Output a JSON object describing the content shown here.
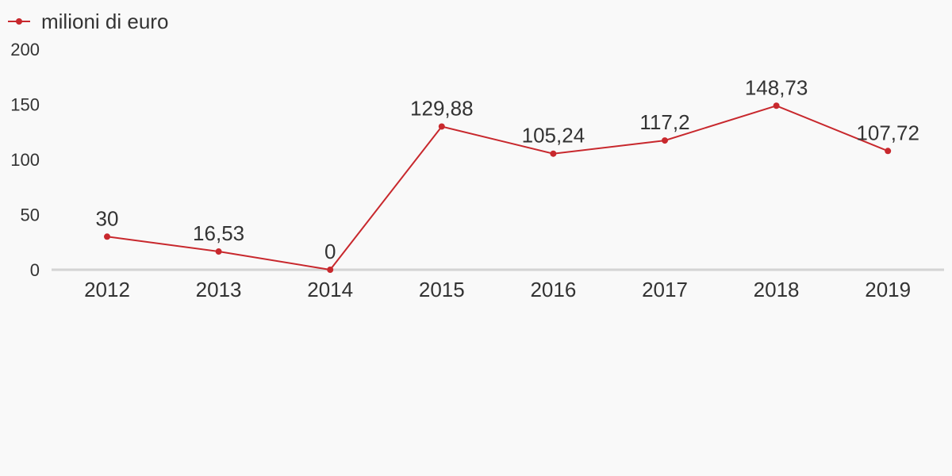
{
  "chart_data": {
    "type": "line",
    "categories": [
      "2012",
      "2013",
      "2014",
      "2015",
      "2016",
      "2017",
      "2018",
      "2019"
    ],
    "series": [
      {
        "name": "milioni di euro",
        "color": "#c8282d",
        "values": [
          30,
          16.53,
          0,
          129.88,
          105.24,
          117.2,
          148.73,
          107.72
        ],
        "labels": [
          "30",
          "16,53",
          "0",
          "129,88",
          "105,24",
          "117,2",
          "148,73",
          "107,72"
        ]
      }
    ],
    "y_ticks": [
      "0",
      "50",
      "100",
      "150",
      "200"
    ],
    "ylim": [
      0,
      200
    ],
    "legend_position": "top-left",
    "grid": false,
    "baseline_color": "#d4d4d4"
  }
}
